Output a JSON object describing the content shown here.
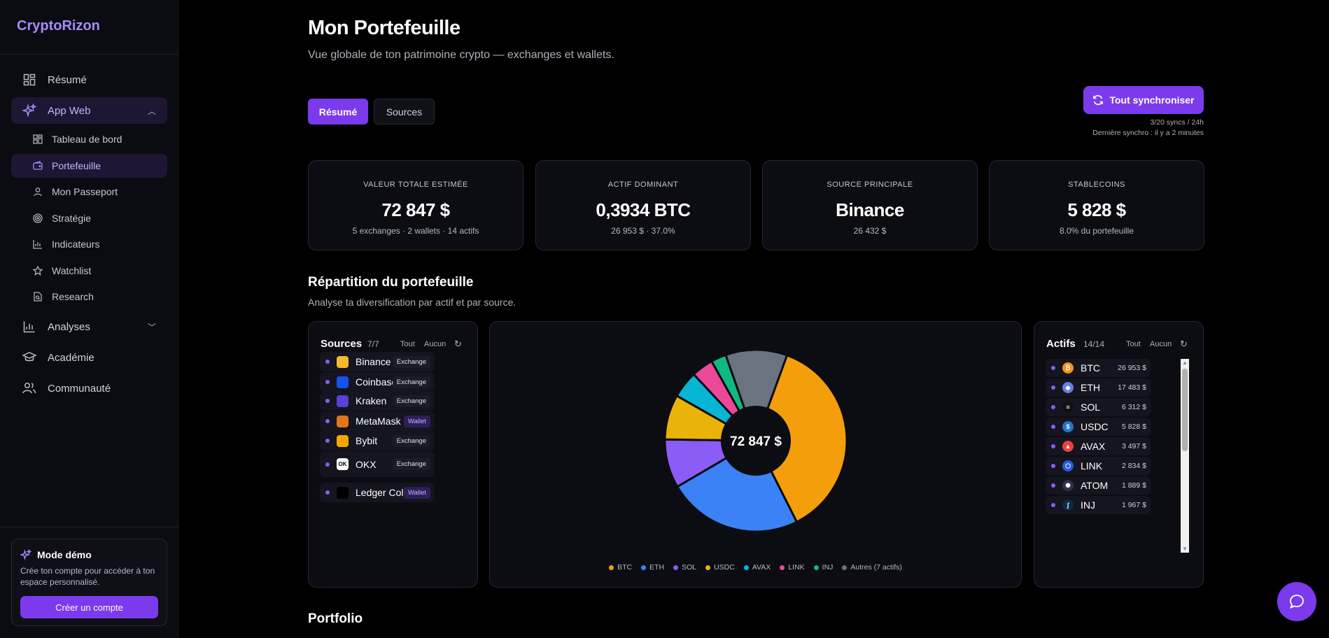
{
  "app": {
    "brand": "CryptoRizon"
  },
  "sidebar": {
    "nav": [
      {
        "label": "Résumé",
        "icon": "dashboard-grid-icon"
      },
      {
        "label": "App Web",
        "icon": "sparkles-icon"
      },
      {
        "label": "Analyses",
        "icon": "bar-chart-icon"
      },
      {
        "label": "Académie",
        "icon": "graduation-cap-icon"
      },
      {
        "label": "Communauté",
        "icon": "users-icon"
      }
    ],
    "sub": [
      {
        "label": "Tableau de bord",
        "icon": "layout-icon"
      },
      {
        "label": "Portefeuille",
        "icon": "wallet-icon"
      },
      {
        "label": "Mon Passeport",
        "icon": "user-icon"
      },
      {
        "label": "Stratégie",
        "icon": "target-icon"
      },
      {
        "label": "Indicateurs",
        "icon": "chart-icon"
      },
      {
        "label": "Watchlist",
        "icon": "star-icon"
      },
      {
        "label": "Research",
        "icon": "file-search-icon"
      }
    ],
    "demo": {
      "title": "Mode démo",
      "text": "Crée ton compte pour accéder à ton espace personnalisé.",
      "button": "Créer un compte"
    }
  },
  "header": {
    "title": "Mon Portefeuille",
    "subtitle": "Vue globale de ton patrimoine crypto — exchanges et wallets."
  },
  "tabs": [
    "Résumé",
    "Sources"
  ],
  "sync": {
    "button": "Tout synchroniser",
    "quota": "3/20 syncs / 24h",
    "last": "Dernière synchro : il y a 2 minutes"
  },
  "cards": [
    {
      "label": "VALEUR TOTALE ESTIMÉE",
      "value": "72 847 $",
      "sub": "5 exchanges · 2 wallets · 14 actifs"
    },
    {
      "label": "ACTIF DOMINANT",
      "value": "0,3934 BTC",
      "sub": "26 953 $ · 37.0%"
    },
    {
      "label": "SOURCE PRINCIPALE",
      "value": "Binance",
      "sub": "26 432 $"
    },
    {
      "label": "STABLECOINS",
      "value": "5 828 $",
      "sub": "8.0% du portefeuille"
    }
  ],
  "repartition": {
    "title": "Répartition du portefeuille",
    "subtitle": "Analyse ta diversification par actif et par source."
  },
  "sources": {
    "title": "Sources",
    "count": "7/7",
    "all": "Tout",
    "none": "Aucun",
    "items": [
      {
        "name": "Binance",
        "badge": "Exchange",
        "color": "#f3ba2f"
      },
      {
        "name": "Coinbase",
        "badge": "Exchange",
        "color": "#1652f0"
      },
      {
        "name": "Kraken",
        "badge": "Exchange",
        "color": "#5741d9"
      },
      {
        "name": "MetaMask ...",
        "badge": "Wallet",
        "color": "#e2761b"
      },
      {
        "name": "Bybit",
        "badge": "Exchange",
        "color": "#f7a600"
      },
      {
        "name": "OKX",
        "badge": "Exchange",
        "color": "#ffffff",
        "alt": "OK"
      },
      {
        "name": "Ledger Cold",
        "badge": "Wallet",
        "color": "#000000"
      }
    ]
  },
  "assets": {
    "title": "Actifs",
    "count": "14/14",
    "all": "Tout",
    "none": "Aucun",
    "items": [
      {
        "name": "BTC",
        "amount": "26 953 $",
        "color": "#f7931a",
        "glyph": "₿"
      },
      {
        "name": "ETH",
        "amount": "17 483 $",
        "color": "#627eea",
        "glyph": "◆"
      },
      {
        "name": "SOL",
        "amount": "6 312 $",
        "color": "#111111",
        "glyph": "≡"
      },
      {
        "name": "USDC",
        "amount": "5 828 $",
        "color": "#2775ca",
        "glyph": "$"
      },
      {
        "name": "AVAX",
        "amount": "3 497 $",
        "color": "#e84142",
        "glyph": "▲"
      },
      {
        "name": "LINK",
        "amount": "2 834 $",
        "color": "#2a5ada",
        "glyph": "⬡"
      },
      {
        "name": "ATOM",
        "amount": "1 889 $",
        "color": "#2e3148",
        "glyph": "✺"
      },
      {
        "name": "INJ",
        "amount": "1 967 $",
        "color": "#0b2b4a",
        "glyph": "ʃ"
      }
    ]
  },
  "chart_data": {
    "type": "pie",
    "center_label": "72 847 $",
    "categories": [
      "BTC",
      "ETH",
      "SOL",
      "USDC",
      "AVAX",
      "LINK",
      "INJ",
      "Autres (7 actifs)"
    ],
    "values": [
      26953,
      17483,
      6312,
      5828,
      3497,
      2834,
      1967,
      7973
    ],
    "colors": [
      "#f59e0b",
      "#3b82f6",
      "#8b5cf6",
      "#eab308",
      "#06b6d4",
      "#ec4899",
      "#10b981",
      "#6b7280"
    ],
    "legend_position": "bottom"
  },
  "portfolio": {
    "title": "Portfolio"
  }
}
